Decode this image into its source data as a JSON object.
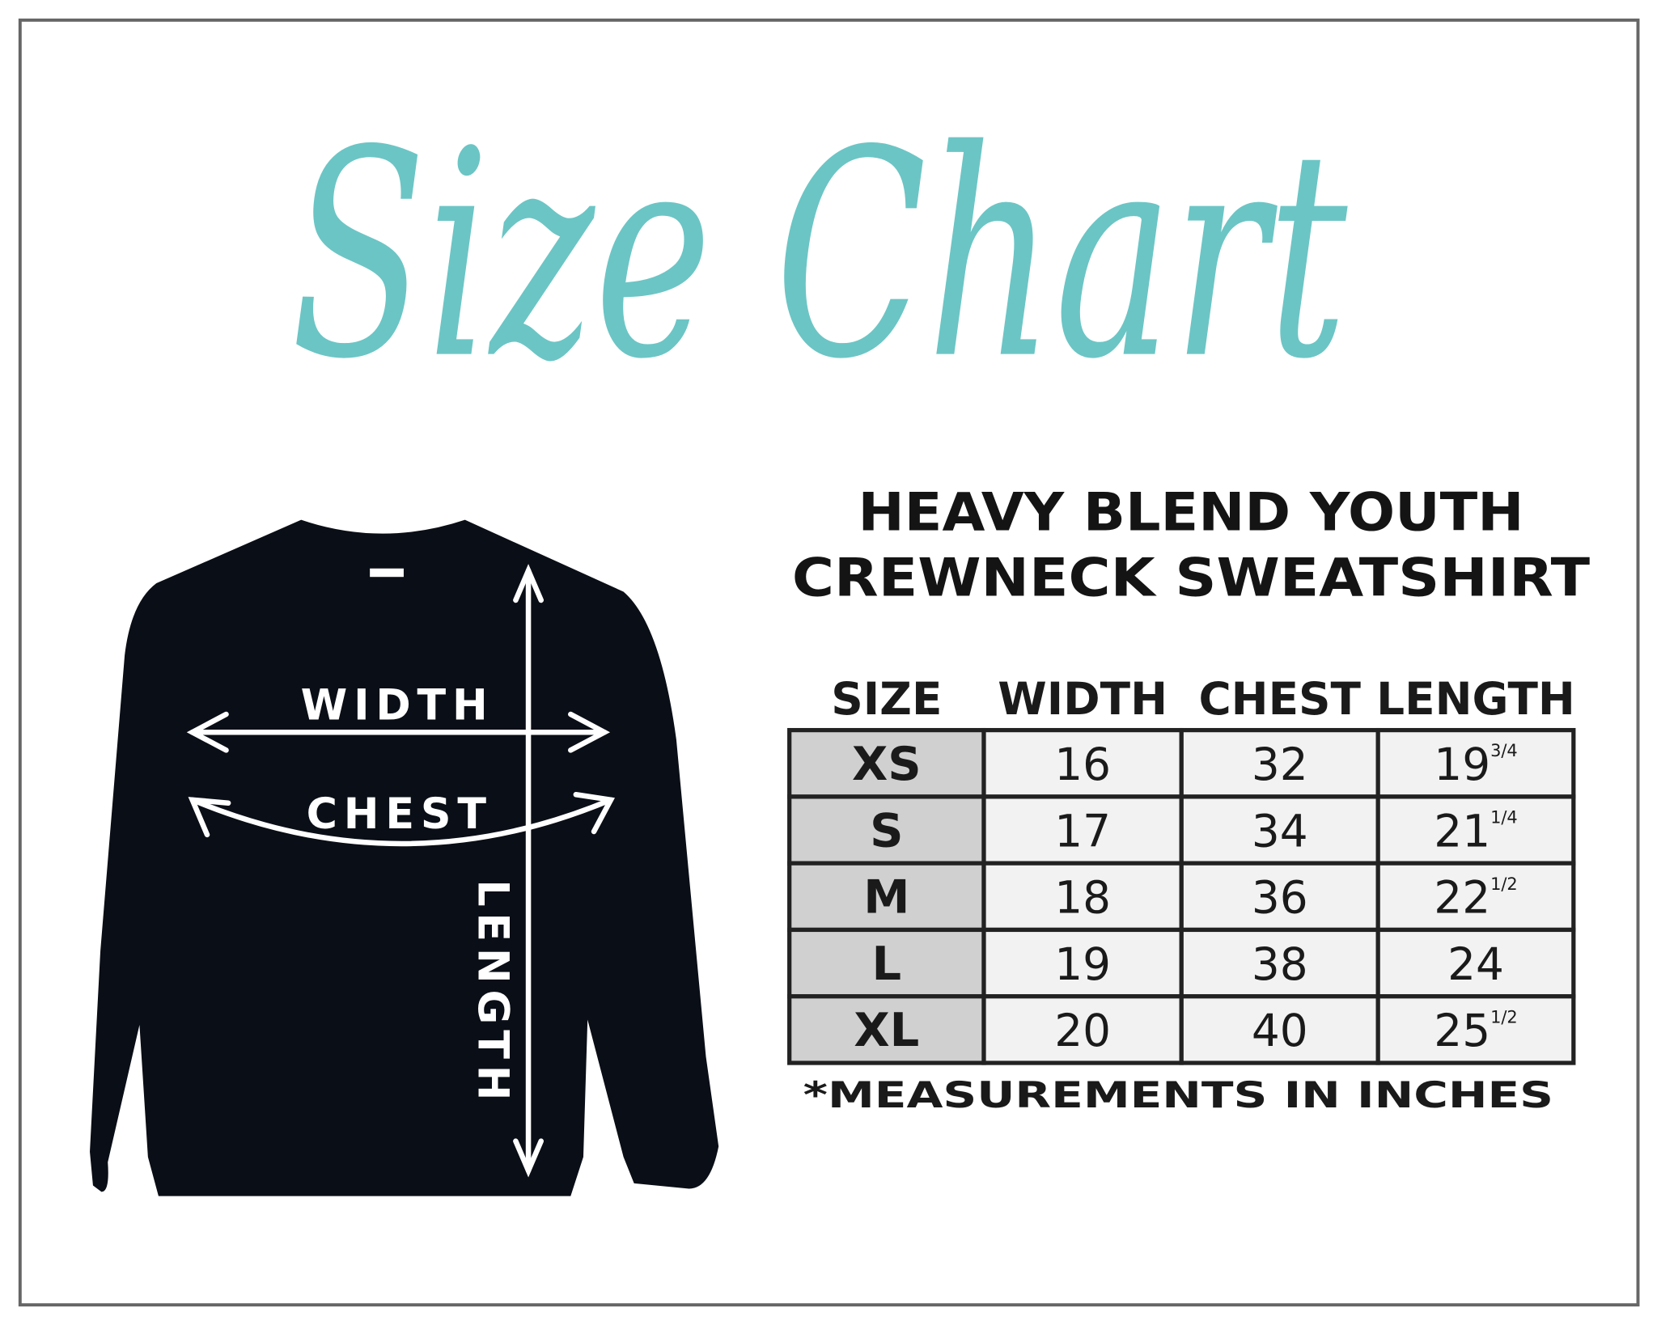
{
  "title": "Size Chart",
  "heading": {
    "line1": "HEAVY BLEND YOUTH",
    "line2": "CREWNECK SWEATSHIRT"
  },
  "colors": {
    "accent": "#6cc5c5",
    "shirt": "#0a0e16",
    "size_cell": "#d0d0d0",
    "value_cell": "#f2f2f2",
    "grid": "#222222"
  },
  "diagram": {
    "width_label": "WIDTH",
    "chest_label": "CHEST",
    "length_label": "LENGTH"
  },
  "table": {
    "headers": [
      "SIZE",
      "WIDTH",
      "CHEST",
      "LENGTH"
    ],
    "rows": [
      {
        "size": "XS",
        "width": "16",
        "chest": "32",
        "length": "19",
        "length_frac": "3/4"
      },
      {
        "size": "S",
        "width": "17",
        "chest": "34",
        "length": "21",
        "length_frac": "1/4"
      },
      {
        "size": "M",
        "width": "18",
        "chest": "36",
        "length": "22",
        "length_frac": "1/2"
      },
      {
        "size": "L",
        "width": "19",
        "chest": "38",
        "length": "24",
        "length_frac": ""
      },
      {
        "size": "XL",
        "width": "20",
        "chest": "40",
        "length": "25",
        "length_frac": "1/2"
      }
    ]
  },
  "footnote": "*MEASUREMENTS IN INCHES"
}
